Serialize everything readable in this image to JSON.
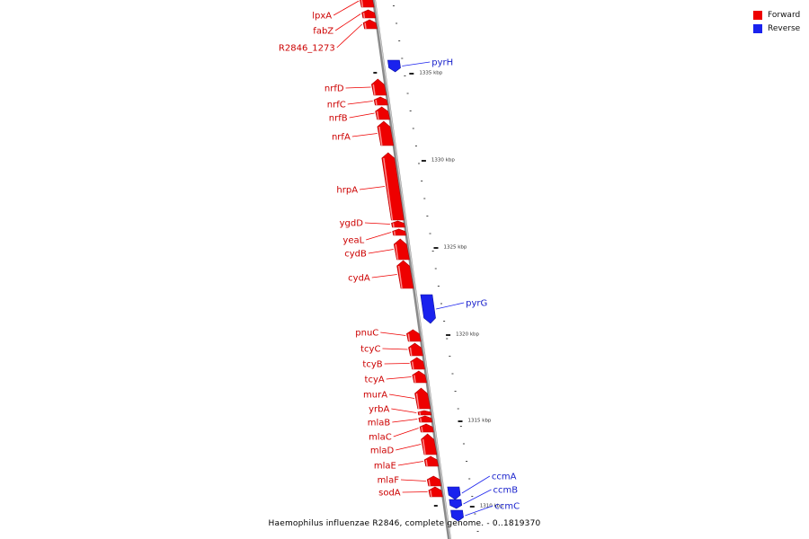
{
  "legend": {
    "forward_label": "Forward",
    "reverse_label": "Reverse",
    "forward_color": "#ee0000",
    "reverse_color": "#1a22ee"
  },
  "caption": "Haemophilus influenzae R2846, complete genome. - 0..1819370",
  "ticks": [
    {
      "kbp": 1335,
      "label": "1335 kbp"
    },
    {
      "kbp": 1330,
      "label": "1330 kbp"
    },
    {
      "kbp": 1325,
      "label": "1325 kbp"
    },
    {
      "kbp": 1320,
      "label": "1320 kbp"
    },
    {
      "kbp": 1315,
      "label": "1315 kbp"
    },
    {
      "kbp": 1310,
      "label": "1310 kbp"
    }
  ],
  "genes": [
    {
      "name": "lpxA",
      "strand": "forward"
    },
    {
      "name": "fabZ",
      "strand": "forward"
    },
    {
      "name": "R2846_1273",
      "strand": "forward"
    },
    {
      "name": "pyrH",
      "strand": "reverse"
    },
    {
      "name": "nrfD",
      "strand": "forward"
    },
    {
      "name": "nrfC",
      "strand": "forward"
    },
    {
      "name": "nrfB",
      "strand": "forward"
    },
    {
      "name": "nrfA",
      "strand": "forward"
    },
    {
      "name": "hrpA",
      "strand": "forward"
    },
    {
      "name": "ygdD",
      "strand": "forward"
    },
    {
      "name": "yeaL",
      "strand": "forward"
    },
    {
      "name": "cydB",
      "strand": "forward"
    },
    {
      "name": "cydA",
      "strand": "forward"
    },
    {
      "name": "pyrG",
      "strand": "reverse"
    },
    {
      "name": "pnuC",
      "strand": "forward"
    },
    {
      "name": "tcyC",
      "strand": "forward"
    },
    {
      "name": "tcyB",
      "strand": "forward"
    },
    {
      "name": "tcyA",
      "strand": "forward"
    },
    {
      "name": "murA",
      "strand": "forward"
    },
    {
      "name": "yrbA",
      "strand": "forward"
    },
    {
      "name": "mlaB",
      "strand": "forward"
    },
    {
      "name": "mlaC",
      "strand": "forward"
    },
    {
      "name": "mlaD",
      "strand": "forward"
    },
    {
      "name": "mlaE",
      "strand": "forward"
    },
    {
      "name": "mlaF",
      "strand": "forward"
    },
    {
      "name": "sodA",
      "strand": "forward"
    },
    {
      "name": "ccmA",
      "strand": "reverse"
    },
    {
      "name": "ccmB",
      "strand": "reverse"
    },
    {
      "name": "ccmC",
      "strand": "reverse"
    }
  ]
}
